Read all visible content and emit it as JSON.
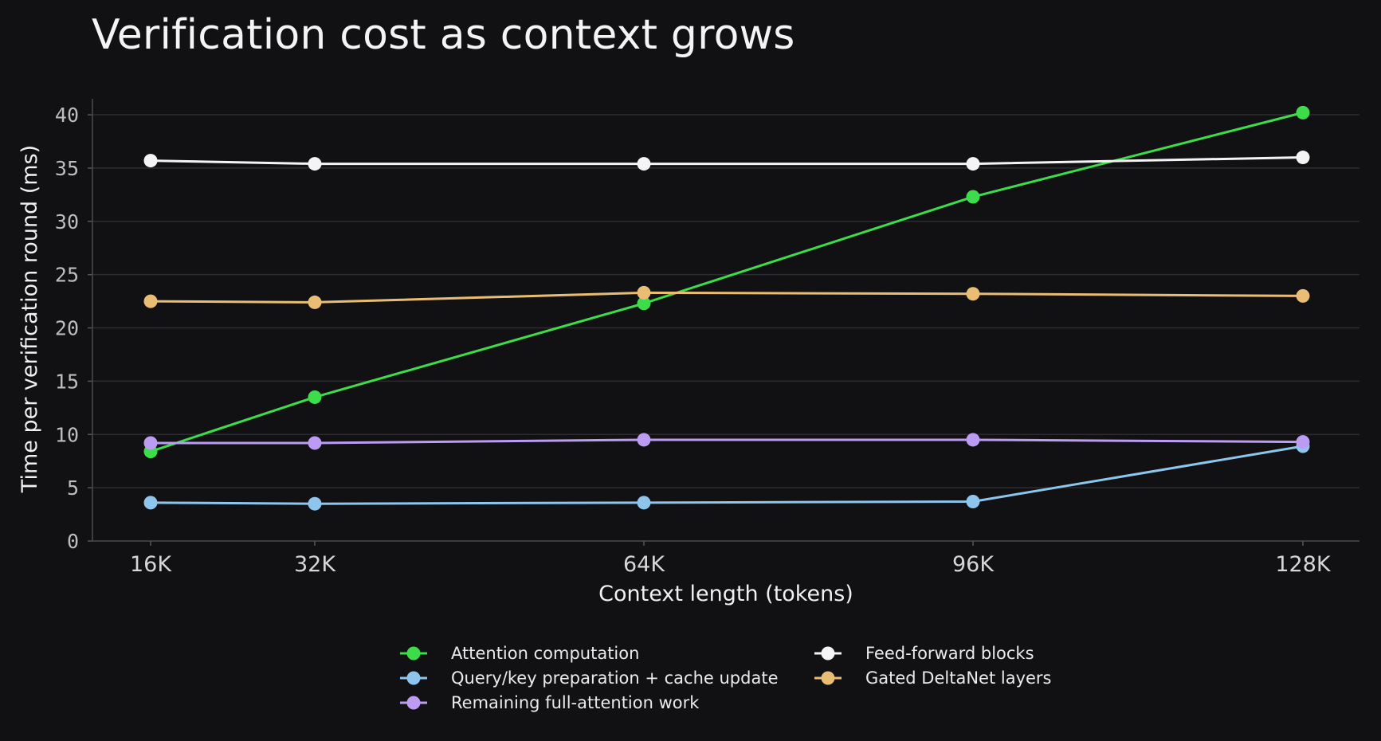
{
  "chart_data": {
    "type": "line",
    "title": "Verification cost as context grows",
    "xlabel": "Context length (tokens)",
    "ylabel": "Time per verification round (ms)",
    "x": [
      16,
      32,
      64,
      96,
      128
    ],
    "x_tick_labels": [
      "16K",
      "32K",
      "64K",
      "96K",
      "128K"
    ],
    "ylim": [
      0,
      42
    ],
    "y_ticks": [
      0,
      5,
      10,
      15,
      20,
      25,
      30,
      35,
      40
    ],
    "grid": "horizontal",
    "legend_position": "bottom",
    "series": [
      {
        "name": "Attention computation",
        "color": "#3ddc4a",
        "values": [
          8.4,
          13.5,
          22.3,
          32.3,
          40.2
        ]
      },
      {
        "name": "Query/key preparation + cache update",
        "color": "#8ec5ec",
        "values": [
          3.6,
          3.5,
          3.6,
          3.7,
          8.9
        ]
      },
      {
        "name": "Remaining full-attention work",
        "color": "#bb9cf2",
        "values": [
          9.2,
          9.2,
          9.5,
          9.5,
          9.3
        ]
      },
      {
        "name": "Feed-forward blocks",
        "color": "#f4f4f4",
        "values": [
          35.7,
          35.4,
          35.4,
          35.4,
          36.0
        ]
      },
      {
        "name": "Gated DeltaNet layers",
        "color": "#e9bd74",
        "values": [
          22.5,
          22.4,
          23.3,
          23.2,
          23.0
        ]
      }
    ]
  }
}
